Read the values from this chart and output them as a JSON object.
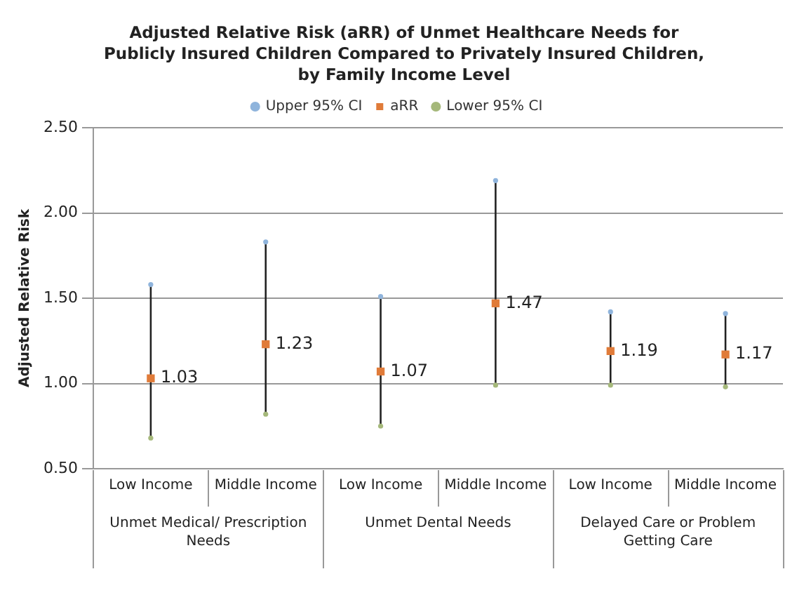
{
  "chart_data": {
    "type": "scatter",
    "title": "Adjusted Relative Risk (aRR) of Unmet Healthcare Needs for\nPublicly Insured Children Compared to Privately Insured Children,\nby Family Income Level",
    "ylabel": "Adjusted Relative Risk",
    "categories": [
      "Low Income",
      "Middle Income",
      "Low Income",
      "Middle Income",
      "Low Income",
      "Middle Income"
    ],
    "annotations": [
      "Unmet Medical/ Prescription Needs",
      "Unmet Dental Needs",
      "Delayed Care or Problem Getting Care"
    ],
    "series": [
      {
        "name": "Upper 95% CI",
        "color": "#8fb4dc",
        "marker": "circle",
        "values": [
          1.58,
          1.83,
          1.51,
          2.19,
          1.42,
          1.41
        ]
      },
      {
        "name": "aRR",
        "color": "#e07b39",
        "marker": "square",
        "values": [
          1.03,
          1.23,
          1.07,
          1.47,
          1.19,
          1.17
        ],
        "value_labels": [
          "1.03",
          "1.23",
          "1.07",
          "1.47",
          "1.19",
          "1.17"
        ]
      },
      {
        "name": "Lower 95% CI",
        "color": "#a5b87a",
        "marker": "circle",
        "values": [
          0.68,
          0.82,
          0.75,
          0.99,
          0.99,
          0.98
        ]
      }
    ],
    "ylim": [
      0.5,
      2.5
    ],
    "yticks": [
      {
        "value": 0.5,
        "label": "0.50"
      },
      {
        "value": 1,
        "label": "1.00"
      },
      {
        "value": 1.5,
        "label": "1.50"
      },
      {
        "value": 2,
        "label": "2.00"
      },
      {
        "value": 2.5,
        "label": "2.50"
      }
    ],
    "grid": "y",
    "legend": "top"
  }
}
